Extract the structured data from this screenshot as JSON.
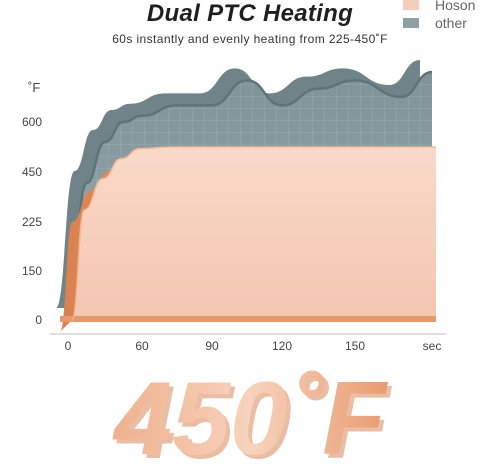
{
  "header": {
    "title": "Dual PTC Heating",
    "subtitle": "60s instantly and evenly heating from 225-450˚F"
  },
  "legend": {
    "items": [
      {
        "label": "Hoson",
        "color": "#f5cdbb"
      },
      {
        "label": "other",
        "color": "#8ea0a6"
      }
    ]
  },
  "chart_data": {
    "type": "area",
    "title": "Dual PTC Heating",
    "subtitle": "60s instantly and evenly heating from 225-450˚F",
    "ylabel": "˚F",
    "xlabel": "sec",
    "x_ticks": [
      "0",
      "60",
      "90",
      "120",
      "150",
      "sec"
    ],
    "y_ticks": [
      "0",
      "150",
      "225",
      "450",
      "600"
    ],
    "series": [
      {
        "name": "other",
        "color": "#8ea0a6",
        "x": [
          0,
          15,
          30,
          45,
          60,
          75,
          90,
          105,
          120,
          135,
          150,
          165,
          175
        ],
        "y": [
          0,
          400,
          540,
          600,
          615,
          640,
          640,
          700,
          640,
          680,
          700,
          660,
          720
        ]
      },
      {
        "name": "Hoson",
        "color": "#f5cdbb",
        "x": [
          0,
          10,
          25,
          40,
          55,
          70,
          90,
          120,
          150,
          175
        ],
        "y": [
          0,
          280,
          420,
          490,
          520,
          525,
          525,
          525,
          525,
          525
        ]
      }
    ]
  },
  "hero": {
    "text": "450˚F"
  }
}
